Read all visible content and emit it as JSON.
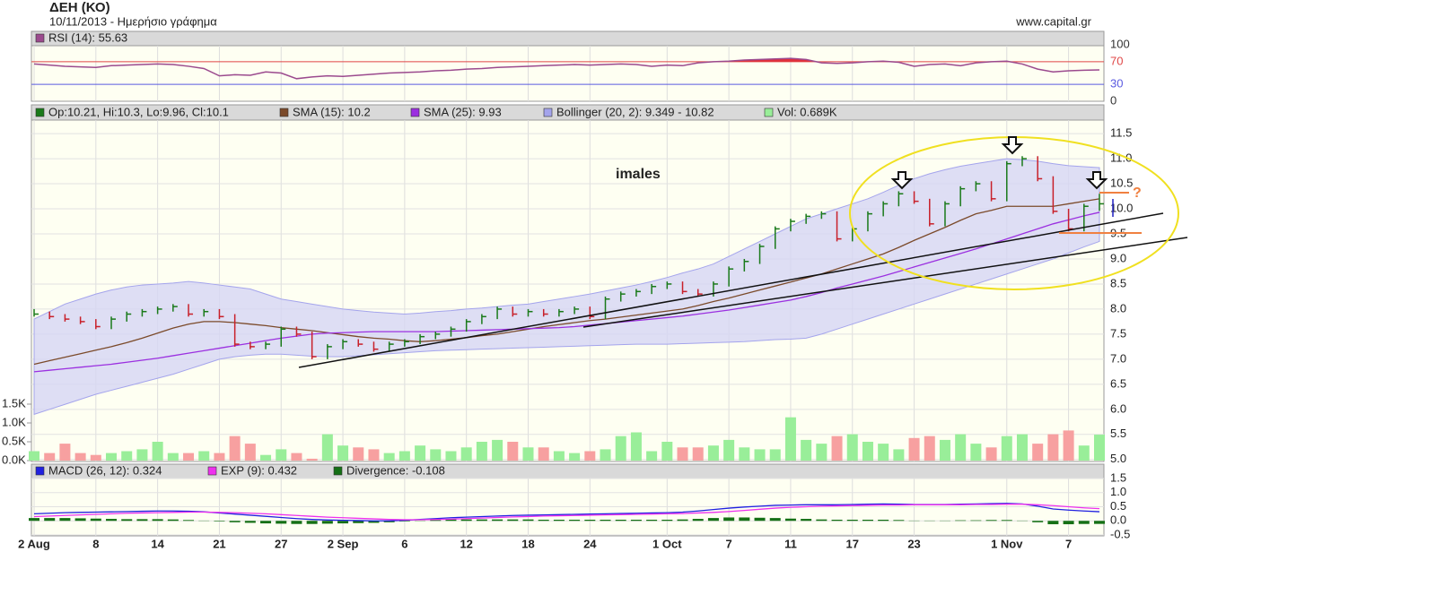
{
  "chart_data": {
    "type": "stock",
    "title": "ΔΕΗ (ΚΟ)",
    "subtitle": "10/11/2013 - Ημερήσιο γράφημα",
    "source": "www.capital.gr",
    "annotations": [
      "imales",
      "?"
    ],
    "grid": true,
    "categories": [
      "2 Aug",
      null,
      null,
      null,
      "8",
      null,
      null,
      null,
      "14",
      null,
      null,
      null,
      "21",
      null,
      null,
      null,
      "27",
      null,
      null,
      null,
      "2 Sep",
      null,
      null,
      null,
      "6",
      null,
      null,
      null,
      "12",
      null,
      null,
      null,
      "18",
      null,
      null,
      null,
      "24",
      null,
      null,
      null,
      null,
      "1 Oct",
      null,
      null,
      null,
      "7",
      null,
      null,
      null,
      "11",
      null,
      null,
      null,
      "17",
      null,
      null,
      null,
      "23",
      null,
      null,
      null,
      null,
      null,
      "1 Nov",
      null,
      null,
      null,
      "7",
      null,
      null
    ],
    "rsi": {
      "ylim": [
        0,
        100
      ],
      "yticks": [
        0,
        30,
        70,
        100
      ],
      "tick_colors": [
        "#333333",
        "#5a5ae0",
        "#e04848",
        "#333333"
      ],
      "tick_lines": [
        false,
        true,
        true,
        false
      ],
      "series": [
        {
          "name": "RSI (14): 55.63",
          "color": "#9b4a8e",
          "fill": "#e0303c",
          "values": [
            66,
            64,
            62,
            61,
            60,
            63,
            64,
            65,
            66,
            65,
            62,
            58,
            45,
            47,
            46,
            52,
            50,
            40,
            43,
            45,
            44,
            46,
            48,
            50,
            51,
            52,
            54,
            55,
            57,
            58,
            60,
            61,
            62,
            63,
            64,
            65,
            64,
            65,
            66,
            65,
            62,
            64,
            63,
            68,
            70,
            71,
            73,
            74,
            75,
            76,
            74,
            68,
            67,
            68,
            70,
            71,
            69,
            62,
            65,
            66,
            63,
            68,
            70,
            71,
            66,
            57,
            52,
            54,
            55,
            55.63
          ]
        }
      ]
    },
    "price": {
      "ylim": [
        4.96,
        11.77
      ],
      "yticks": [
        {
          "value": 5,
          "label": "5.0"
        },
        5.5,
        {
          "value": 6,
          "label": "6.0"
        },
        6.5,
        {
          "value": 7,
          "label": "7.0"
        },
        7.5,
        {
          "value": 8,
          "label": "8.0"
        },
        8.5,
        {
          "value": 9,
          "label": "9.0"
        },
        9.5,
        {
          "value": 10,
          "label": "10.0"
        },
        10.5,
        {
          "value": 11,
          "label": "11.0"
        },
        11.5
      ],
      "bars": {
        "name": "Op:10.21, Hi:10.3, Lo:9.96, Cl:10.1",
        "up_color": "#1a7a1a",
        "down_color": "#c8202a",
        "high": [
          8.0,
          7.95,
          7.9,
          7.85,
          7.8,
          7.85,
          7.95,
          8.0,
          8.05,
          8.1,
          8.1,
          8.0,
          8.0,
          7.9,
          7.35,
          7.35,
          7.65,
          7.65,
          7.55,
          7.3,
          7.4,
          7.4,
          7.35,
          7.35,
          7.4,
          7.5,
          7.55,
          7.65,
          7.8,
          7.9,
          8.05,
          8.05,
          8.0,
          8.0,
          8.0,
          8.05,
          8.05,
          8.25,
          8.35,
          8.4,
          8.5,
          8.55,
          8.55,
          8.4,
          8.55,
          8.85,
          9.0,
          9.3,
          9.65,
          9.8,
          9.9,
          9.95,
          9.95,
          9.65,
          9.95,
          10.15,
          10.35,
          10.35,
          10.2,
          10.15,
          10.45,
          10.55,
          10.55,
          10.95,
          11.05,
          11.05,
          10.65,
          10.0,
          10.1,
          10.3
        ],
        "low": [
          7.85,
          7.8,
          7.75,
          7.7,
          7.6,
          7.6,
          7.75,
          7.85,
          7.9,
          7.95,
          7.85,
          7.85,
          7.8,
          7.25,
          7.2,
          7.2,
          7.25,
          7.45,
          7.0,
          7.0,
          7.2,
          7.25,
          7.15,
          7.15,
          7.25,
          7.3,
          7.4,
          7.45,
          7.55,
          7.7,
          7.8,
          7.85,
          7.85,
          7.85,
          7.85,
          7.9,
          7.8,
          7.8,
          8.15,
          8.25,
          8.3,
          8.4,
          8.3,
          8.25,
          8.25,
          8.45,
          8.75,
          8.9,
          9.2,
          9.55,
          9.7,
          9.8,
          9.35,
          9.35,
          9.55,
          9.85,
          10.05,
          10.1,
          9.65,
          9.65,
          10.05,
          10.35,
          10.15,
          10.15,
          10.85,
          10.55,
          9.9,
          9.55,
          9.55,
          9.96
        ],
        "close": [
          7.9,
          7.85,
          7.8,
          7.75,
          7.65,
          7.8,
          7.9,
          7.95,
          8.0,
          8.05,
          7.9,
          7.95,
          7.85,
          7.3,
          7.25,
          7.3,
          7.6,
          7.5,
          7.05,
          7.25,
          7.35,
          7.3,
          7.2,
          7.3,
          7.35,
          7.45,
          7.5,
          7.6,
          7.75,
          7.85,
          8.0,
          7.9,
          7.95,
          7.9,
          7.95,
          8.0,
          7.85,
          8.2,
          8.3,
          8.35,
          8.45,
          8.5,
          8.35,
          8.3,
          8.5,
          8.8,
          8.95,
          9.25,
          9.6,
          9.75,
          9.85,
          9.9,
          9.4,
          9.6,
          9.9,
          10.1,
          10.3,
          10.15,
          9.7,
          10.1,
          10.4,
          10.5,
          10.2,
          10.9,
          11.0,
          10.6,
          9.95,
          9.6,
          10.05,
          10.1
        ]
      },
      "series": [
        {
          "name": "SMA (15): 10.2",
          "color": "#7b4a2a",
          "values": [
            6.9,
            6.97,
            7.04,
            7.11,
            7.18,
            7.25,
            7.33,
            7.42,
            7.52,
            7.62,
            7.7,
            7.75,
            7.75,
            7.73,
            7.7,
            7.67,
            7.63,
            7.6,
            7.57,
            7.53,
            7.49,
            7.45,
            7.42,
            7.4,
            7.37,
            7.35,
            7.37,
            7.4,
            7.43,
            7.47,
            7.5,
            7.55,
            7.6,
            7.65,
            7.69,
            7.73,
            7.77,
            7.8,
            7.84,
            7.88,
            7.92,
            7.96,
            8.0,
            8.07,
            8.15,
            8.22,
            8.3,
            8.38,
            8.46,
            8.54,
            8.62,
            8.7,
            8.8,
            8.9,
            9.0,
            9.1,
            9.23,
            9.37,
            9.5,
            9.63,
            9.77,
            9.9,
            9.97,
            10.05,
            10.05,
            10.05,
            10.05,
            10.1,
            10.15,
            10.2
          ]
        },
        {
          "name": "SMA (25): 9.93",
          "color": "#9b30e0",
          "values": [
            6.75,
            6.78,
            6.81,
            6.84,
            6.87,
            6.9,
            6.94,
            6.98,
            7.02,
            7.07,
            7.12,
            7.17,
            7.22,
            7.27,
            7.32,
            7.37,
            7.42,
            7.46,
            7.5,
            7.52,
            7.53,
            7.54,
            7.55,
            7.55,
            7.55,
            7.55,
            7.55,
            7.56,
            7.57,
            7.58,
            7.59,
            7.6,
            7.61,
            7.62,
            7.63,
            7.65,
            7.68,
            7.71,
            7.74,
            7.77,
            7.8,
            7.83,
            7.86,
            7.9,
            7.94,
            7.98,
            8.03,
            8.08,
            8.13,
            8.18,
            8.25,
            8.33,
            8.42,
            8.5,
            8.58,
            8.66,
            8.75,
            8.84,
            8.93,
            9.02,
            9.11,
            9.2,
            9.3,
            9.4,
            9.5,
            9.6,
            9.7,
            9.78,
            9.86,
            9.93
          ]
        }
      ],
      "band": {
        "name": "Bollinger (20, 2): 9.349 - 10.82",
        "color": "#a4a4ec",
        "fill": "#d6d6f4",
        "upper": [
          7.8,
          7.95,
          8.1,
          8.2,
          8.3,
          8.38,
          8.44,
          8.48,
          8.5,
          8.52,
          8.55,
          8.52,
          8.48,
          8.44,
          8.4,
          8.3,
          8.2,
          8.15,
          8.1,
          8.05,
          8.0,
          7.97,
          7.94,
          7.92,
          7.9,
          7.92,
          7.95,
          7.97,
          8.0,
          8.02,
          8.05,
          8.08,
          8.1,
          8.15,
          8.2,
          8.25,
          8.3,
          8.36,
          8.42,
          8.48,
          8.55,
          8.63,
          8.72,
          8.8,
          8.9,
          9.05,
          9.2,
          9.35,
          9.5,
          9.65,
          9.8,
          9.9,
          10.0,
          10.1,
          10.2,
          10.33,
          10.47,
          10.6,
          10.7,
          10.78,
          10.85,
          10.9,
          10.95,
          11.0,
          10.98,
          10.95,
          10.9,
          10.86,
          10.84,
          10.82
        ],
        "lower": [
          5.9,
          6.0,
          6.1,
          6.2,
          6.3,
          6.38,
          6.46,
          6.54,
          6.62,
          6.7,
          6.8,
          6.9,
          7.0,
          7.05,
          7.08,
          7.1,
          7.1,
          7.08,
          7.06,
          7.05,
          7.05,
          7.07,
          7.09,
          7.11,
          7.13,
          7.15,
          7.17,
          7.18,
          7.19,
          7.2,
          7.21,
          7.22,
          7.23,
          7.24,
          7.25,
          7.26,
          7.27,
          7.28,
          7.29,
          7.3,
          7.3,
          7.3,
          7.31,
          7.32,
          7.33,
          7.34,
          7.35,
          7.37,
          7.39,
          7.4,
          7.42,
          7.5,
          7.6,
          7.7,
          7.8,
          7.9,
          8.0,
          8.1,
          8.2,
          8.3,
          8.4,
          8.5,
          8.6,
          8.7,
          8.8,
          8.9,
          9.0,
          9.12,
          9.24,
          9.349
        ]
      }
    },
    "volume": {
      "name": "Vol: 0.689K",
      "color": "#99ee99",
      "up_color": "#99ee99",
      "down_color": "#f7a0a0",
      "ylim": [
        0,
        9
      ],
      "yticks": [
        {
          "value": 0,
          "label": "0.0K"
        },
        {
          "value": 0.5,
          "label": "0.5K"
        },
        {
          "value": 1,
          "label": "1.0K"
        },
        {
          "value": 1.5,
          "label": "1.5K"
        }
      ],
      "values": [
        0.25,
        0.2,
        0.45,
        0.2,
        0.15,
        0.2,
        0.25,
        0.3,
        0.5,
        0.2,
        0.2,
        0.25,
        0.2,
        0.65,
        0.45,
        0.15,
        0.3,
        0.2,
        0.05,
        0.7,
        0.4,
        0.35,
        0.3,
        0.2,
        0.25,
        0.4,
        0.3,
        0.25,
        0.35,
        0.5,
        0.55,
        0.5,
        0.35,
        0.35,
        0.25,
        0.2,
        0.25,
        0.3,
        0.65,
        0.75,
        0.25,
        0.5,
        0.35,
        0.35,
        0.4,
        0.55,
        0.35,
        0.3,
        0.3,
        1.15,
        0.55,
        0.45,
        0.65,
        0.7,
        0.5,
        0.45,
        0.3,
        0.6,
        0.65,
        0.55,
        0.7,
        0.45,
        0.35,
        0.65,
        0.7,
        0.45,
        0.7,
        0.8,
        0.4,
        0.689
      ]
    },
    "macd": {
      "ylim": [
        -0.5,
        1.5
      ],
      "yticks": [
        -0.5,
        {
          "value": 0,
          "label": "0.0"
        },
        0.5,
        {
          "value": 1,
          "label": "1.0"
        },
        1.5
      ],
      "series": [
        {
          "name": "MACD (26, 12): 0.324",
          "color": "#2020e0",
          "values": [
            0.25,
            0.27,
            0.29,
            0.3,
            0.31,
            0.32,
            0.33,
            0.34,
            0.35,
            0.35,
            0.34,
            0.32,
            0.28,
            0.24,
            0.2,
            0.16,
            0.12,
            0.08,
            0.05,
            0.03,
            0.02,
            0.01,
            0.0,
            0.0,
            0.02,
            0.05,
            0.08,
            0.11,
            0.13,
            0.15,
            0.17,
            0.19,
            0.2,
            0.21,
            0.22,
            0.23,
            0.24,
            0.25,
            0.26,
            0.27,
            0.28,
            0.29,
            0.31,
            0.35,
            0.4,
            0.45,
            0.49,
            0.52,
            0.55,
            0.56,
            0.57,
            0.57,
            0.57,
            0.58,
            0.59,
            0.6,
            0.59,
            0.58,
            0.58,
            0.58,
            0.59,
            0.6,
            0.61,
            0.62,
            0.6,
            0.52,
            0.42,
            0.38,
            0.35,
            0.324
          ]
        },
        {
          "name": "EXP (9): 0.432",
          "color": "#ee30ee",
          "values": [
            0.15,
            0.17,
            0.19,
            0.21,
            0.23,
            0.25,
            0.27,
            0.28,
            0.29,
            0.3,
            0.31,
            0.31,
            0.3,
            0.29,
            0.27,
            0.25,
            0.22,
            0.19,
            0.16,
            0.13,
            0.11,
            0.09,
            0.07,
            0.05,
            0.04,
            0.04,
            0.05,
            0.06,
            0.08,
            0.1,
            0.12,
            0.14,
            0.15,
            0.17,
            0.18,
            0.19,
            0.2,
            0.21,
            0.22,
            0.23,
            0.24,
            0.25,
            0.26,
            0.28,
            0.3,
            0.33,
            0.37,
            0.41,
            0.45,
            0.48,
            0.5,
            0.52,
            0.53,
            0.54,
            0.55,
            0.56,
            0.56,
            0.57,
            0.57,
            0.57,
            0.57,
            0.58,
            0.58,
            0.59,
            0.59,
            0.57,
            0.54,
            0.5,
            0.46,
            0.432
          ]
        }
      ],
      "divergence": {
        "name": "Divergence: -0.108",
        "color": "#157015",
        "values": [
          0.1,
          0.1,
          0.1,
          0.09,
          0.08,
          0.07,
          0.06,
          0.06,
          0.06,
          0.05,
          0.03,
          0.01,
          -0.02,
          -0.05,
          -0.07,
          -0.09,
          -0.1,
          -0.11,
          -0.11,
          -0.1,
          -0.09,
          -0.08,
          -0.07,
          -0.05,
          -0.02,
          0.01,
          0.03,
          0.05,
          0.05,
          0.05,
          0.05,
          0.05,
          0.05,
          0.04,
          0.04,
          0.04,
          0.04,
          0.04,
          0.04,
          0.04,
          0.04,
          0.04,
          0.05,
          0.07,
          0.1,
          0.12,
          0.12,
          0.11,
          0.1,
          0.08,
          0.07,
          0.05,
          0.04,
          0.04,
          0.04,
          0.04,
          0.03,
          0.01,
          0.01,
          0.01,
          0.02,
          0.02,
          0.03,
          0.03,
          0.01,
          -0.05,
          -0.12,
          -0.12,
          -0.11,
          -0.108
        ]
      }
    }
  }
}
